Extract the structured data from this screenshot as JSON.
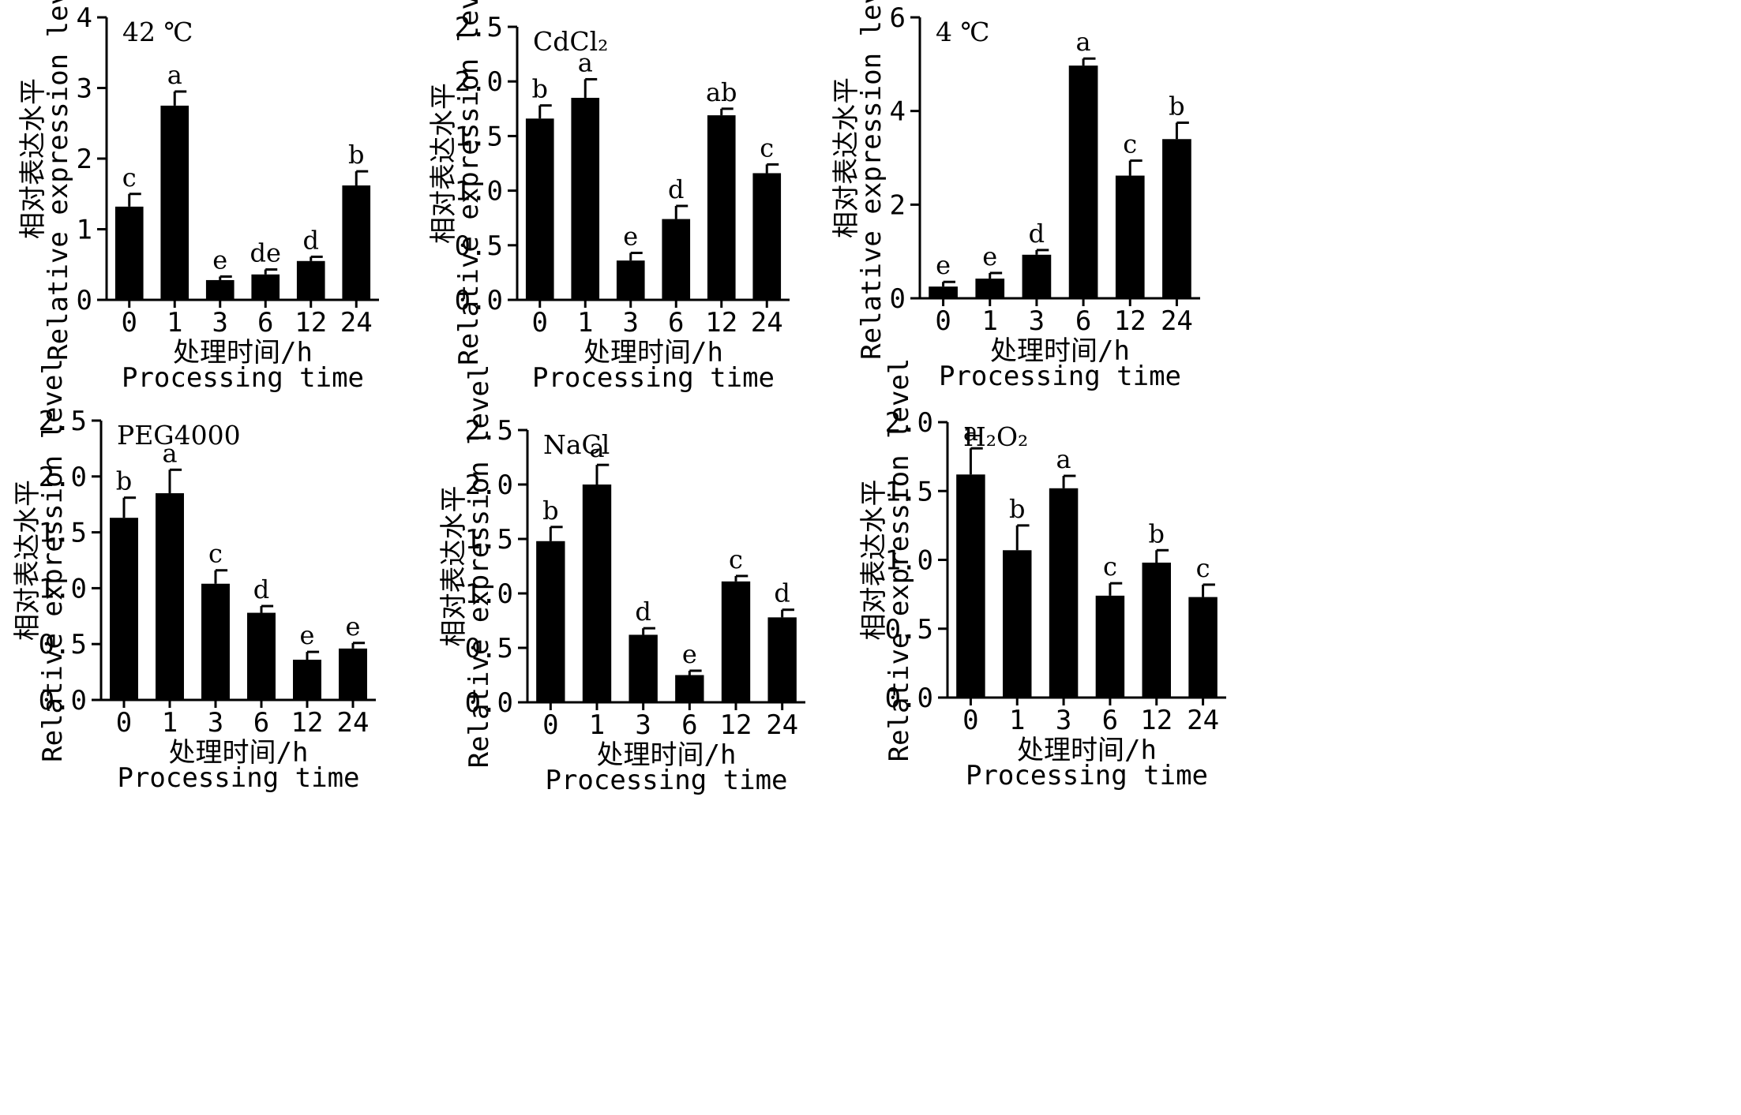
{
  "chart_data": [
    {
      "type": "bar",
      "title": "42 ℃",
      "categories": [
        "0",
        "1",
        "3",
        "6",
        "12",
        "24"
      ],
      "values": [
        1.32,
        2.75,
        0.28,
        0.36,
        0.55,
        1.62
      ],
      "errors": [
        0.18,
        0.2,
        0.05,
        0.07,
        0.06,
        0.2
      ],
      "letters": [
        "c",
        "a",
        "e",
        "de",
        "d",
        "b"
      ],
      "ylim": [
        0,
        4
      ],
      "yticks": [
        "0",
        "1",
        "2",
        "3",
        "4"
      ],
      "ylabel_cn": "相对表达水平",
      "ylabel_en": "Relative expression level",
      "xlabel_cn": "处理时间/h",
      "xlabel_en": "Processing time"
    },
    {
      "type": "bar",
      "title": "CdCl₂",
      "categories": [
        "0",
        "1",
        "3",
        "6",
        "12",
        "24"
      ],
      "values": [
        1.66,
        1.85,
        0.36,
        0.74,
        1.69,
        1.16
      ],
      "errors": [
        0.12,
        0.17,
        0.07,
        0.12,
        0.06,
        0.08
      ],
      "letters": [
        "b",
        "a",
        "e",
        "d",
        "ab",
        "c"
      ],
      "ylim": [
        0,
        2.5
      ],
      "yticks": [
        "0.0",
        "0.5",
        "1.0",
        "1.5",
        "2.0",
        "2.5"
      ],
      "ylabel_cn": "相对表达水平",
      "ylabel_en": "Relative expression level",
      "xlabel_cn": "处理时间/h",
      "xlabel_en": "Processing time"
    },
    {
      "type": "bar",
      "title": "4 ℃",
      "categories": [
        "0",
        "1",
        "3",
        "6",
        "12",
        "24"
      ],
      "values": [
        0.25,
        0.42,
        0.93,
        4.97,
        2.62,
        3.4
      ],
      "errors": [
        0.1,
        0.12,
        0.1,
        0.15,
        0.32,
        0.35
      ],
      "letters": [
        "e",
        "e",
        "d",
        "a",
        "c",
        "b"
      ],
      "ylim": [
        0,
        6
      ],
      "yticks": [
        "0",
        "2",
        "4",
        "6"
      ],
      "ylabel_cn": "相对表达水平",
      "ylabel_en": "Relative expression level",
      "xlabel_cn": "处理时间/h",
      "xlabel_en": "Processing time"
    },
    {
      "type": "bar",
      "title": "PEG4000",
      "categories": [
        "0",
        "1",
        "3",
        "6",
        "12",
        "24"
      ],
      "values": [
        1.63,
        1.85,
        1.04,
        0.78,
        0.36,
        0.46
      ],
      "errors": [
        0.18,
        0.21,
        0.12,
        0.06,
        0.07,
        0.05
      ],
      "letters": [
        "b",
        "a",
        "c",
        "d",
        "e",
        "e"
      ],
      "ylim": [
        0,
        2.5
      ],
      "yticks": [
        "0.0",
        "0.5",
        "1.0",
        "1.5",
        "2.0",
        "2.5"
      ],
      "ylabel_cn": "相对表达水平",
      "ylabel_en": "Relative expression level",
      "xlabel_cn": "处理时间/h",
      "xlabel_en": "Processing time"
    },
    {
      "type": "bar",
      "title": "NaCl",
      "categories": [
        "0",
        "1",
        "3",
        "6",
        "12",
        "24"
      ],
      "values": [
        1.48,
        2.0,
        0.62,
        0.25,
        1.11,
        0.78
      ],
      "errors": [
        0.13,
        0.18,
        0.06,
        0.04,
        0.05,
        0.07
      ],
      "letters": [
        "b",
        "a",
        "d",
        "e",
        "c",
        "d"
      ],
      "ylim": [
        0,
        2.5
      ],
      "yticks": [
        "0.0",
        "0.5",
        "1.0",
        "1.5",
        "2.0",
        "2.5"
      ],
      "ylabel_cn": "相对表达水平",
      "ylabel_en": "Relative expression level",
      "xlabel_cn": "处理时间/h",
      "xlabel_en": "Processing time"
    },
    {
      "type": "bar",
      "title": "H₂O₂",
      "categories": [
        "0",
        "1",
        "3",
        "6",
        "12",
        "24"
      ],
      "values": [
        1.62,
        1.07,
        1.52,
        0.74,
        0.98,
        0.73
      ],
      "errors": [
        0.19,
        0.18,
        0.09,
        0.09,
        0.09,
        0.09
      ],
      "letters": [
        "a",
        "b",
        "a",
        "c",
        "b",
        "c"
      ],
      "ylim": [
        0,
        2.0
      ],
      "yticks": [
        "0.0",
        "0.5",
        "1.0",
        "1.5",
        "2.0"
      ],
      "ylabel_cn": "相对表达水平",
      "ylabel_en": "Relative expression level",
      "xlabel_cn": "处理时间/h",
      "xlabel_en": "Processing time"
    }
  ]
}
